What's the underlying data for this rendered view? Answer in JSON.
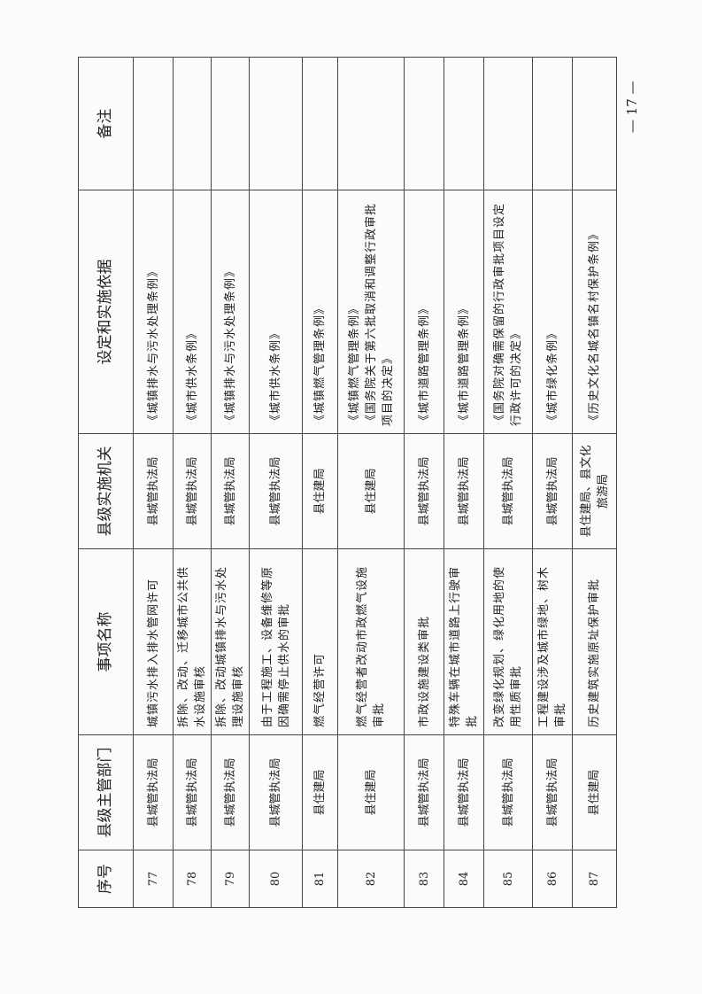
{
  "table": {
    "headers": [
      "序号",
      "县级主管部门",
      "事项名称",
      "县级实施机关",
      "设定和实施依据",
      "备注"
    ],
    "rows": [
      {
        "no": "77",
        "dept": "县城管执法局",
        "item": "城镇污水排入排水管网许可",
        "agency": "县城管执法局",
        "basis": "《城镇排水与污水处理条例》",
        "note": ""
      },
      {
        "no": "78",
        "dept": "县城管执法局",
        "item": "拆除、改动、迁移城市公共供水设施审核",
        "agency": "县城管执法局",
        "basis": "《城市供水条例》",
        "note": ""
      },
      {
        "no": "79",
        "dept": "县城管执法局",
        "item": "拆除、改动城镇排水与污水处理设施审核",
        "agency": "县城管执法局",
        "basis": "《城镇排水与污水处理条例》",
        "note": ""
      },
      {
        "no": "80",
        "dept": "县城管执法局",
        "item": "由于工程施工、设备维修等原因确需停止供水的审批",
        "agency": "县城管执法局",
        "basis": "《城市供水条例》",
        "note": ""
      },
      {
        "no": "81",
        "dept": "县住建局",
        "item": "燃气经营许可",
        "agency": "县住建局",
        "basis": "《城镇燃气管理条例》",
        "note": ""
      },
      {
        "no": "82",
        "dept": "县住建局",
        "item": "燃气经营者改动市政燃气设施审批",
        "agency": "县住建局",
        "basis": "《城镇燃气管理条例》\n《国务院关于第六批取消和调整行政审批项目的决定》",
        "note": ""
      },
      {
        "no": "83",
        "dept": "县城管执法局",
        "item": "市政设施建设类审批",
        "agency": "县城管执法局",
        "basis": "《城市道路管理条例》",
        "note": ""
      },
      {
        "no": "84",
        "dept": "县城管执法局",
        "item": "特殊车辆在城市道路上行驶审批",
        "agency": "县城管执法局",
        "basis": "《城市道路管理条例》",
        "note": ""
      },
      {
        "no": "85",
        "dept": "县城管执法局",
        "item": "改变绿化规划、绿化用地的使用性质审批",
        "agency": "县城管执法局",
        "basis": "《国务院对确需保留的行政审批项目设定行政许可的决定》",
        "note": ""
      },
      {
        "no": "86",
        "dept": "县城管执法局",
        "item": "工程建设涉及城市绿地、树木审批",
        "agency": "县城管执法局",
        "basis": "《城市绿化条例》",
        "note": ""
      },
      {
        "no": "87",
        "dept": "县住建局",
        "item": "历史建筑实施原址保护审批",
        "agency": "县住建局、县文化旅游局",
        "basis": "《历史文化名城名镇名村保护条例》",
        "note": ""
      }
    ]
  },
  "page_number": "— 17 —"
}
